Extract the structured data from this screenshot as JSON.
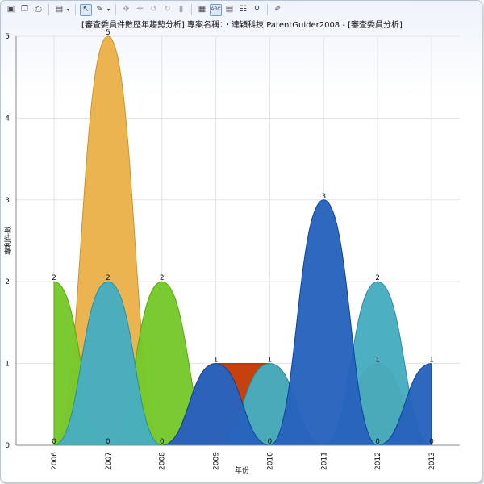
{
  "toolbar": {
    "items": [
      {
        "icon": "image-icon",
        "glyph": "▣"
      },
      {
        "icon": "copy-icon",
        "glyph": "❐"
      },
      {
        "icon": "print-icon",
        "glyph": "⎙"
      },
      {
        "icon": "sep"
      },
      {
        "icon": "chart-type-icon",
        "glyph": "▤",
        "dropdown": true
      },
      {
        "icon": "sep"
      },
      {
        "icon": "pointer-icon",
        "glyph": "↖",
        "active": true
      },
      {
        "icon": "pen-icon",
        "glyph": "✎",
        "dropdown": true
      },
      {
        "icon": "sep"
      },
      {
        "icon": "pan-icon",
        "glyph": "✥",
        "disabled": true
      },
      {
        "icon": "move-icon",
        "glyph": "✛",
        "disabled": true
      },
      {
        "icon": "rotate-left-icon",
        "glyph": "↺",
        "disabled": true
      },
      {
        "icon": "rotate-right-icon",
        "glyph": "↻",
        "disabled": true
      },
      {
        "icon": "depth-icon",
        "glyph": "▮",
        "disabled": true
      },
      {
        "icon": "sep"
      },
      {
        "icon": "color-table-icon",
        "glyph": "▦"
      },
      {
        "icon": "data-labels-icon",
        "glyph": "ABC",
        "active": true
      },
      {
        "icon": "legend-icon",
        "glyph": "▤"
      },
      {
        "icon": "data-table-icon",
        "glyph": "☷"
      },
      {
        "icon": "zoom-icon",
        "glyph": "⚲"
      },
      {
        "icon": "sep"
      },
      {
        "icon": "properties-icon",
        "glyph": "✐"
      }
    ]
  },
  "chart_data": {
    "type": "area",
    "title": "[審查委員件數歷年趨勢分析] 專案名稱：・達穎科技 PatentGuider2008 - [審查委員分析]",
    "xlabel": "年份",
    "ylabel": "專利件數",
    "categories": [
      "2006",
      "2007",
      "2008",
      "2009",
      "2010",
      "2011",
      "2012",
      "2013"
    ],
    "ylim": [
      0,
      5
    ],
    "yticks": [
      0,
      1,
      2,
      3,
      4,
      5
    ],
    "grid": true,
    "legend": false,
    "series": [
      {
        "color": "#eab24a",
        "values": [
          0,
          5,
          0,
          0,
          0,
          0,
          0,
          0
        ]
      },
      {
        "color": "#76c82b",
        "values": [
          2,
          0,
          2,
          0,
          0,
          0,
          0,
          0
        ]
      },
      {
        "color": "#c43b06",
        "values": [
          0,
          0,
          0,
          1,
          1,
          0,
          1,
          0
        ]
      },
      {
        "color": "#46adc0",
        "values": [
          0,
          2,
          0,
          0,
          1,
          0,
          2,
          0
        ]
      },
      {
        "color": "#2763bd",
        "values": [
          0,
          0,
          0,
          1,
          0,
          3,
          0,
          1
        ]
      }
    ],
    "data_labels": [
      {
        "x": "2006",
        "text": "2",
        "at": 2
      },
      {
        "x": "2006",
        "text": "0",
        "at": 0
      },
      {
        "x": "2007",
        "text": "5",
        "at": 5
      },
      {
        "x": "2007",
        "text": "2",
        "at": 2
      },
      {
        "x": "2007",
        "text": "0",
        "at": 0
      },
      {
        "x": "2008",
        "text": "2",
        "at": 2
      },
      {
        "x": "2008",
        "text": "0",
        "at": 0
      },
      {
        "x": "2009",
        "text": "1",
        "at": 1
      },
      {
        "x": "2010",
        "text": "1",
        "at": 1
      },
      {
        "x": "2010",
        "text": "0",
        "at": 0
      },
      {
        "x": "2011",
        "text": "3",
        "at": 3
      },
      {
        "x": "2012",
        "text": "2",
        "at": 2
      },
      {
        "x": "2012",
        "text": "1",
        "at": 1
      },
      {
        "x": "2012",
        "text": "0",
        "at": 0
      },
      {
        "x": "2013",
        "text": "1",
        "at": 1
      },
      {
        "x": "2013",
        "text": "0",
        "at": 0
      }
    ]
  }
}
